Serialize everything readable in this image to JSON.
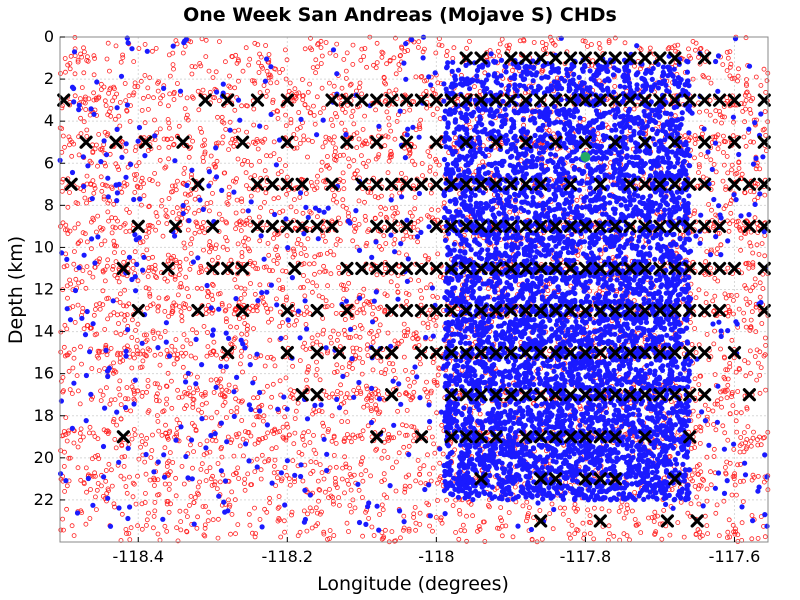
{
  "chart_data": {
    "type": "scatter",
    "title": "One Week San Andreas (Mojave S) CHDs",
    "xlabel": "Longitude (degrees)",
    "ylabel": "Depth (km)",
    "xlim": [
      -118.505,
      -117.555
    ],
    "ylim": [
      0,
      24
    ],
    "y_inverted": true,
    "grid": true,
    "x_ticks": [
      -118.4,
      -118.2,
      -118,
      -117.8,
      -117.6
    ],
    "x_tick_labels": [
      "-118.4",
      "-118.2",
      "-118",
      "-117.8",
      "-117.6"
    ],
    "y_ticks": [
      0,
      2,
      4,
      6,
      8,
      10,
      12,
      14,
      16,
      18,
      20,
      22
    ],
    "y_tick_labels": [
      "0",
      "2",
      "4",
      "6",
      "8",
      "10",
      "12",
      "14",
      "16",
      "18",
      "20",
      "22"
    ],
    "series": [
      {
        "marker": "open-circle",
        "color": "#ff2020",
        "density": "dense across full longitude range, depth 0-24 km"
      },
      {
        "marker": "filled-circle",
        "color": "#1a1aff",
        "density": "concentrated between -118.0 and -117.65, depth 1-22 km"
      },
      {
        "marker": "x",
        "color": "#000000",
        "rows_depth_km": [
          1,
          3,
          5,
          7,
          9,
          11,
          13,
          15,
          17,
          19,
          21,
          23
        ]
      },
      {
        "marker": "filled-circle",
        "color": "#22aa66",
        "points": [
          [
            -117.8,
            5.7
          ]
        ]
      }
    ],
    "x_markers": [
      [
        -118.5,
        3
      ],
      [
        -118.31,
        3
      ],
      [
        -118.28,
        3
      ],
      [
        -118.24,
        3
      ],
      [
        -118.2,
        3
      ],
      [
        -118.14,
        3
      ],
      [
        -118.12,
        3
      ],
      [
        -118.1,
        3
      ],
      [
        -118.08,
        3
      ],
      [
        -118.06,
        3
      ],
      [
        -118.04,
        3
      ],
      [
        -118.02,
        3
      ],
      [
        -118.0,
        3
      ],
      [
        -117.98,
        3
      ],
      [
        -117.96,
        3
      ],
      [
        -117.94,
        3
      ],
      [
        -117.92,
        3
      ],
      [
        -117.9,
        3
      ],
      [
        -117.88,
        3
      ],
      [
        -117.86,
        3
      ],
      [
        -117.84,
        3
      ],
      [
        -117.82,
        3
      ],
      [
        -117.8,
        3
      ],
      [
        -117.78,
        3
      ],
      [
        -117.76,
        3
      ],
      [
        -117.74,
        3
      ],
      [
        -117.72,
        3
      ],
      [
        -117.7,
        3
      ],
      [
        -117.68,
        3
      ],
      [
        -117.66,
        3
      ],
      [
        -117.64,
        3
      ],
      [
        -117.62,
        3
      ],
      [
        -117.6,
        3
      ],
      [
        -117.56,
        3
      ],
      [
        -117.96,
        1
      ],
      [
        -117.94,
        1
      ],
      [
        -117.9,
        1
      ],
      [
        -117.88,
        1
      ],
      [
        -117.86,
        1
      ],
      [
        -117.84,
        1
      ],
      [
        -117.82,
        1
      ],
      [
        -117.8,
        1
      ],
      [
        -117.78,
        1
      ],
      [
        -117.76,
        1
      ],
      [
        -117.74,
        1
      ],
      [
        -117.72,
        1
      ],
      [
        -117.7,
        1
      ],
      [
        -117.68,
        1
      ],
      [
        -117.64,
        1
      ],
      [
        -118.47,
        5
      ],
      [
        -118.43,
        5
      ],
      [
        -118.39,
        5
      ],
      [
        -118.34,
        5
      ],
      [
        -118.26,
        5
      ],
      [
        -118.2,
        5
      ],
      [
        -118.12,
        5
      ],
      [
        -118.08,
        5
      ],
      [
        -118.04,
        5
      ],
      [
        -118.0,
        5
      ],
      [
        -117.96,
        5
      ],
      [
        -117.92,
        5
      ],
      [
        -117.88,
        5
      ],
      [
        -117.84,
        5
      ],
      [
        -117.8,
        5
      ],
      [
        -117.76,
        5
      ],
      [
        -117.72,
        5
      ],
      [
        -117.68,
        5
      ],
      [
        -117.64,
        5
      ],
      [
        -117.6,
        5
      ],
      [
        -117.56,
        5
      ],
      [
        -118.49,
        7
      ],
      [
        -118.32,
        7
      ],
      [
        -118.24,
        7
      ],
      [
        -118.22,
        7
      ],
      [
        -118.2,
        7
      ],
      [
        -118.18,
        7
      ],
      [
        -118.14,
        7
      ],
      [
        -118.1,
        7
      ],
      [
        -118.08,
        7
      ],
      [
        -118.06,
        7
      ],
      [
        -118.04,
        7
      ],
      [
        -118.02,
        7
      ],
      [
        -118.0,
        7
      ],
      [
        -117.98,
        7
      ],
      [
        -117.96,
        7
      ],
      [
        -117.94,
        7
      ],
      [
        -117.92,
        7
      ],
      [
        -117.9,
        7
      ],
      [
        -117.88,
        7
      ],
      [
        -117.86,
        7
      ],
      [
        -117.82,
        7
      ],
      [
        -117.78,
        7
      ],
      [
        -117.74,
        7
      ],
      [
        -117.72,
        7
      ],
      [
        -117.7,
        7
      ],
      [
        -117.68,
        7
      ],
      [
        -117.66,
        7
      ],
      [
        -117.64,
        7
      ],
      [
        -117.6,
        7
      ],
      [
        -117.58,
        7
      ],
      [
        -117.56,
        7
      ],
      [
        -118.4,
        9
      ],
      [
        -118.35,
        9
      ],
      [
        -118.3,
        9
      ],
      [
        -118.24,
        9
      ],
      [
        -118.22,
        9
      ],
      [
        -118.2,
        9
      ],
      [
        -118.18,
        9
      ],
      [
        -118.16,
        9
      ],
      [
        -118.14,
        9
      ],
      [
        -118.08,
        9
      ],
      [
        -118.06,
        9
      ],
      [
        -118.04,
        9
      ],
      [
        -118.0,
        9
      ],
      [
        -117.98,
        9
      ],
      [
        -117.96,
        9
      ],
      [
        -117.94,
        9
      ],
      [
        -117.92,
        9
      ],
      [
        -117.9,
        9
      ],
      [
        -117.88,
        9
      ],
      [
        -117.86,
        9
      ],
      [
        -117.84,
        9
      ],
      [
        -117.82,
        9
      ],
      [
        -117.8,
        9
      ],
      [
        -117.78,
        9
      ],
      [
        -117.76,
        9
      ],
      [
        -117.74,
        9
      ],
      [
        -117.72,
        9
      ],
      [
        -117.7,
        9
      ],
      [
        -117.68,
        9
      ],
      [
        -117.66,
        9
      ],
      [
        -117.64,
        9
      ],
      [
        -117.62,
        9
      ],
      [
        -117.58,
        9
      ],
      [
        -117.56,
        9
      ],
      [
        -118.42,
        11
      ],
      [
        -118.36,
        11
      ],
      [
        -118.3,
        11
      ],
      [
        -118.28,
        11
      ],
      [
        -118.26,
        11
      ],
      [
        -118.19,
        11
      ],
      [
        -118.12,
        11
      ],
      [
        -118.1,
        11
      ],
      [
        -118.08,
        11
      ],
      [
        -118.06,
        11
      ],
      [
        -118.04,
        11
      ],
      [
        -118.02,
        11
      ],
      [
        -118.0,
        11
      ],
      [
        -117.98,
        11
      ],
      [
        -117.96,
        11
      ],
      [
        -117.94,
        11
      ],
      [
        -117.92,
        11
      ],
      [
        -117.9,
        11
      ],
      [
        -117.88,
        11
      ],
      [
        -117.86,
        11
      ],
      [
        -117.84,
        11
      ],
      [
        -117.82,
        11
      ],
      [
        -117.8,
        11
      ],
      [
        -117.78,
        11
      ],
      [
        -117.76,
        11
      ],
      [
        -117.74,
        11
      ],
      [
        -117.72,
        11
      ],
      [
        -117.7,
        11
      ],
      [
        -117.68,
        11
      ],
      [
        -117.66,
        11
      ],
      [
        -117.64,
        11
      ],
      [
        -117.62,
        11
      ],
      [
        -117.6,
        11
      ],
      [
        -117.56,
        11
      ],
      [
        -118.4,
        13
      ],
      [
        -118.32,
        13
      ],
      [
        -118.26,
        13
      ],
      [
        -118.2,
        13
      ],
      [
        -118.16,
        13
      ],
      [
        -118.12,
        13
      ],
      [
        -118.06,
        13
      ],
      [
        -118.04,
        13
      ],
      [
        -118.02,
        13
      ],
      [
        -118.0,
        13
      ],
      [
        -117.98,
        13
      ],
      [
        -117.96,
        13
      ],
      [
        -117.94,
        13
      ],
      [
        -117.92,
        13
      ],
      [
        -117.9,
        13
      ],
      [
        -117.88,
        13
      ],
      [
        -117.86,
        13
      ],
      [
        -117.84,
        13
      ],
      [
        -117.82,
        13
      ],
      [
        -117.8,
        13
      ],
      [
        -117.78,
        13
      ],
      [
        -117.76,
        13
      ],
      [
        -117.74,
        13
      ],
      [
        -117.72,
        13
      ],
      [
        -117.7,
        13
      ],
      [
        -117.68,
        13
      ],
      [
        -117.66,
        13
      ],
      [
        -117.64,
        13
      ],
      [
        -117.62,
        13
      ],
      [
        -117.56,
        13
      ],
      [
        -118.28,
        15
      ],
      [
        -118.2,
        15
      ],
      [
        -118.16,
        15
      ],
      [
        -118.13,
        15
      ],
      [
        -118.08,
        15
      ],
      [
        -118.06,
        15
      ],
      [
        -118.02,
        15
      ],
      [
        -118.0,
        15
      ],
      [
        -117.98,
        15
      ],
      [
        -117.96,
        15
      ],
      [
        -117.94,
        15
      ],
      [
        -117.92,
        15
      ],
      [
        -117.9,
        15
      ],
      [
        -117.88,
        15
      ],
      [
        -117.86,
        15
      ],
      [
        -117.84,
        15
      ],
      [
        -117.82,
        15
      ],
      [
        -117.8,
        15
      ],
      [
        -117.78,
        15
      ],
      [
        -117.76,
        15
      ],
      [
        -117.74,
        15
      ],
      [
        -117.72,
        15
      ],
      [
        -117.7,
        15
      ],
      [
        -117.68,
        15
      ],
      [
        -117.66,
        15
      ],
      [
        -117.64,
        15
      ],
      [
        -117.6,
        15
      ],
      [
        -118.18,
        17
      ],
      [
        -118.16,
        17
      ],
      [
        -118.06,
        17
      ],
      [
        -117.98,
        17
      ],
      [
        -117.96,
        17
      ],
      [
        -117.94,
        17
      ],
      [
        -117.92,
        17
      ],
      [
        -117.9,
        17
      ],
      [
        -117.88,
        17
      ],
      [
        -117.86,
        17
      ],
      [
        -117.84,
        17
      ],
      [
        -117.82,
        17
      ],
      [
        -117.8,
        17
      ],
      [
        -117.78,
        17
      ],
      [
        -117.76,
        17
      ],
      [
        -117.74,
        17
      ],
      [
        -117.72,
        17
      ],
      [
        -117.7,
        17
      ],
      [
        -117.68,
        17
      ],
      [
        -117.66,
        17
      ],
      [
        -117.64,
        17
      ],
      [
        -117.58,
        17
      ],
      [
        -118.42,
        19
      ],
      [
        -118.08,
        19
      ],
      [
        -118.02,
        19
      ],
      [
        -117.98,
        19
      ],
      [
        -117.96,
        19
      ],
      [
        -117.94,
        19
      ],
      [
        -117.92,
        19
      ],
      [
        -117.88,
        19
      ],
      [
        -117.86,
        19
      ],
      [
        -117.84,
        19
      ],
      [
        -117.82,
        19
      ],
      [
        -117.8,
        19
      ],
      [
        -117.78,
        19
      ],
      [
        -117.76,
        19
      ],
      [
        -117.72,
        19
      ],
      [
        -117.66,
        19
      ],
      [
        -117.94,
        21
      ],
      [
        -117.86,
        21
      ],
      [
        -117.84,
        21
      ],
      [
        -117.8,
        21
      ],
      [
        -117.78,
        21
      ],
      [
        -117.76,
        21
      ],
      [
        -117.68,
        21
      ],
      [
        -117.86,
        23
      ],
      [
        -117.78,
        23
      ],
      [
        -117.69,
        23
      ],
      [
        -117.65,
        23
      ]
    ]
  }
}
